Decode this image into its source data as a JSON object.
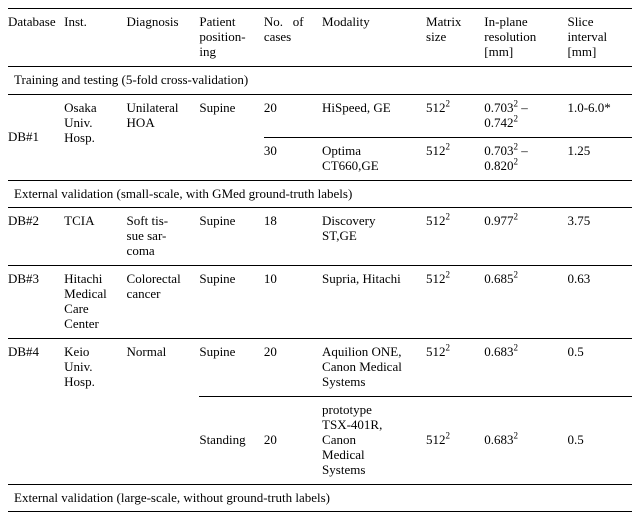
{
  "columns": {
    "database": "Database",
    "inst": "Inst.",
    "diagnosis": "Diagnosis",
    "positioning_l1": "Patient",
    "positioning_l2": "position-",
    "positioning_l3": "ing",
    "cases_l1": "No.",
    "cases_l2": "of",
    "cases_l3": "cases",
    "modality": "Modality",
    "matrix_l1": "Matrix",
    "matrix_l2": "size",
    "res_l1": "In-plane",
    "res_l2": "resolution",
    "res_l3": "[mm]",
    "slice_l1": "Slice",
    "slice_l2": "interval",
    "slice_l3": "[mm]"
  },
  "sections": {
    "s1": "Training and testing (5-fold cross-validation)",
    "s2": "External validation (small-scale, with GMed ground-truth labels)",
    "s3": "External validation (large-scale, without ground-truth labels)"
  },
  "rows": {
    "db1": {
      "database": "DB#1",
      "inst_l1": "Osaka",
      "inst_l2": "Univ.",
      "inst_l3": "Hosp.",
      "diag_l1": "Unilateral",
      "diag_l2": "HOA",
      "pos": "Supine",
      "r1": {
        "cases": "20",
        "modality": "HiSpeed, GE",
        "matrix_base": "512",
        "matrix_sup": "2",
        "res_a_base": "0.703",
        "res_a_sup": "2",
        "res_dash": " – ",
        "res_b_base": "0.742",
        "res_b_sup": "2",
        "slice": "1.0-6.0*"
      },
      "r2": {
        "cases": "30",
        "mod_l1": "Optima",
        "mod_l2": "CT660,GE",
        "matrix_base": "512",
        "matrix_sup": "2",
        "res_a_base": "0.703",
        "res_a_sup": "2",
        "res_dash": " – ",
        "res_b_base": "0.820",
        "res_b_sup": "2",
        "slice": "1.25"
      }
    },
    "db2": {
      "database": "DB#2",
      "inst": "TCIA",
      "diag_l1": "Soft tis-",
      "diag_l2": "sue sar-",
      "diag_l3": "coma",
      "pos": "Supine",
      "cases": "18",
      "mod_l1": "Discovery",
      "mod_l2": "ST,GE",
      "matrix_base": "512",
      "matrix_sup": "2",
      "res_base": "0.977",
      "res_sup": "2",
      "slice": "3.75"
    },
    "db3": {
      "database": "DB#3",
      "inst_l1": "Hitachi",
      "inst_l2": "Medical",
      "inst_l3": "Care",
      "inst_l4": "Center",
      "diag_l1": "Colorectal",
      "diag_l2": "cancer",
      "pos": "Supine",
      "cases": "10",
      "modality": "Supria, Hitachi",
      "matrix_base": "512",
      "matrix_sup": "2",
      "res_base": "0.685",
      "res_sup": "2",
      "slice": "0.63"
    },
    "db4": {
      "database": "DB#4",
      "inst_l1": "Keio",
      "inst_l2": "Univ.",
      "inst_l3": "Hosp.",
      "diag": "Normal",
      "r1": {
        "pos": "Supine",
        "cases": "20",
        "mod_l1": "Aquilion ONE,",
        "mod_l2": "Canon Medical",
        "mod_l3": "Systems",
        "matrix_base": "512",
        "matrix_sup": "2",
        "res_base": "0.683",
        "res_sup": "2",
        "slice": "0.5"
      },
      "r2": {
        "pos": "Standing",
        "cases": "20",
        "mod_l1": "prototype",
        "mod_l2": "TSX-401R,",
        "mod_l3": "Canon",
        "mod_l4": "Medical",
        "mod_l5": "Systems",
        "matrix_base": "512",
        "matrix_sup": "2",
        "res_base": "0.683",
        "res_sup": "2",
        "slice": "0.5"
      }
    }
  }
}
